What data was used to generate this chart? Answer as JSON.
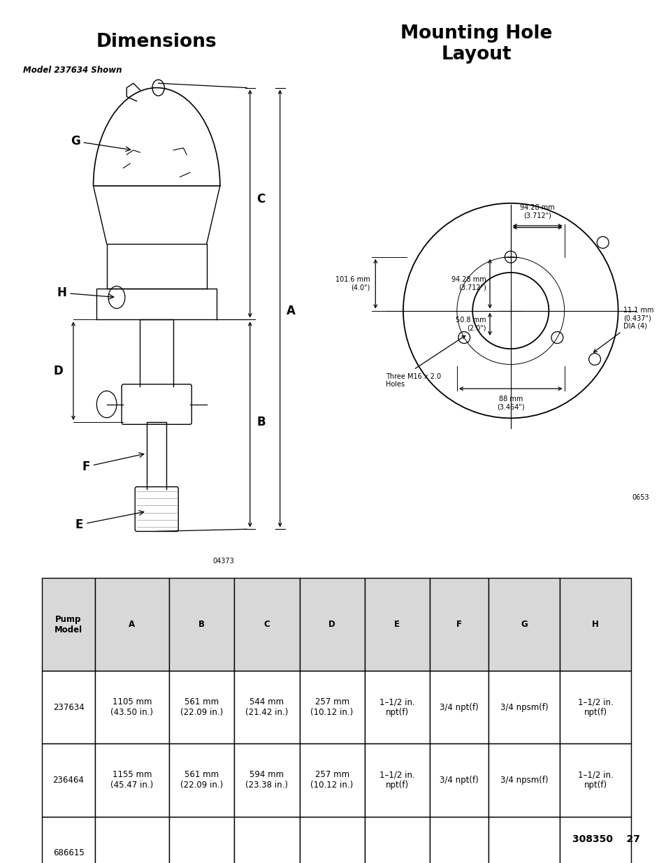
{
  "title_left": "Dimensions",
  "title_right": "Mounting Hole\nLayout",
  "subtitle": "Model 237634 Shown",
  "page_bg": "#ffffff",
  "table_headers": [
    "Pump\nModel",
    "A",
    "B",
    "C",
    "D",
    "E",
    "F",
    "G",
    "H"
  ],
  "table_rows": [
    [
      "237634",
      "1105 mm\n(43.50 in.)",
      "561 mm\n(22.09 in.)",
      "544 mm\n(21.42 in.)",
      "257 mm\n(10.12 in.)",
      "1–1/2 in.\nnpt(f)",
      "3/4 npt(f)",
      "3/4 npsm(f)",
      "1–1/2 in.\nnpt(f)"
    ],
    [
      "236464",
      "1155 mm\n(45.47 in.)",
      "561 mm\n(22.09 in.)",
      "594 mm\n(23.38 in.)",
      "257 mm\n(10.12 in.)",
      "1–1/2 in.\nnpt(f)",
      "3/4 npt(f)",
      "3/4 npsm(f)",
      "1–1/2 in.\nnpt(f)"
    ],
    [
      "686615",
      "",
      "",
      "",
      "",
      "",
      "",
      "",
      ""
    ]
  ],
  "ref_left": "04373",
  "ref_right": "0653",
  "page_num": "308350    27"
}
